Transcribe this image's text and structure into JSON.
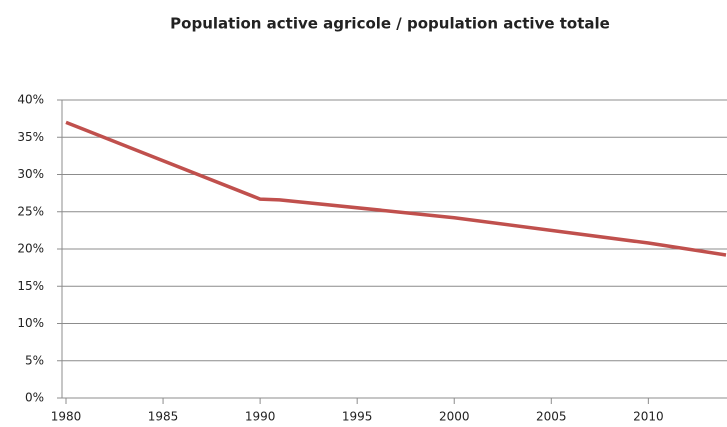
{
  "chart_data": {
    "type": "line",
    "title": "Population active agricole / population active totale",
    "x": [
      1980,
      1990,
      1991,
      2000,
      2010,
      2014
    ],
    "series": [
      {
        "name": "Population active agricole / population active totale",
        "color": "#c0504d",
        "values": [
          37,
          26.7,
          26.6,
          24.2,
          20.8,
          19.2
        ]
      }
    ],
    "xlim": [
      1980,
      2014
    ],
    "xticks": [
      1980,
      1985,
      1990,
      1995,
      2000,
      2005,
      2010
    ],
    "ylim": [
      0,
      40
    ],
    "yticks": [
      {
        "value": 0,
        "label": "0%"
      },
      {
        "value": 5,
        "label": "5%"
      },
      {
        "value": 10,
        "label": "10%"
      },
      {
        "value": 15,
        "label": "15%"
      },
      {
        "value": 20,
        "label": "20%"
      },
      {
        "value": 25,
        "label": "25%"
      },
      {
        "value": 30,
        "label": "30%"
      },
      {
        "value": 35,
        "label": "35%"
      },
      {
        "value": 40,
        "label": "40%"
      }
    ],
    "grid": true
  }
}
